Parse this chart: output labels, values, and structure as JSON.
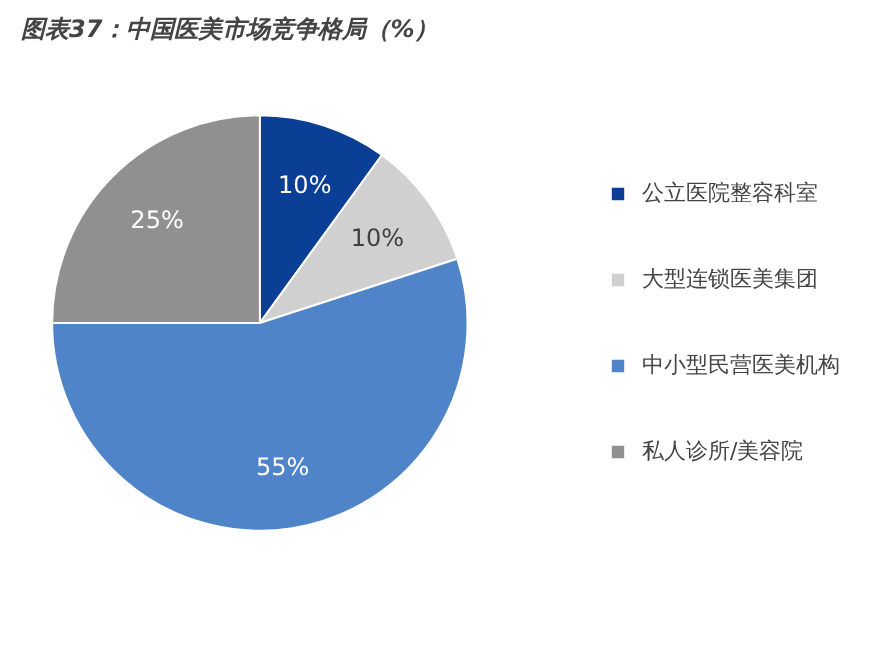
{
  "chart_data": {
    "type": "pie",
    "title": "图表37：中国医美市场竞争格局（%）",
    "categories": [
      "公立医院整容科室",
      "大型连锁医美集团",
      "中小型民营医美机构",
      "私人诊所/美容院"
    ],
    "values": [
      10,
      10,
      55,
      25
    ],
    "colors": [
      "#0b3f96",
      "#d0d0d0",
      "#4f84c8",
      "#909090"
    ],
    "value_labels": [
      "10%",
      "10%",
      "55%",
      "25%"
    ],
    "legend": "right"
  }
}
